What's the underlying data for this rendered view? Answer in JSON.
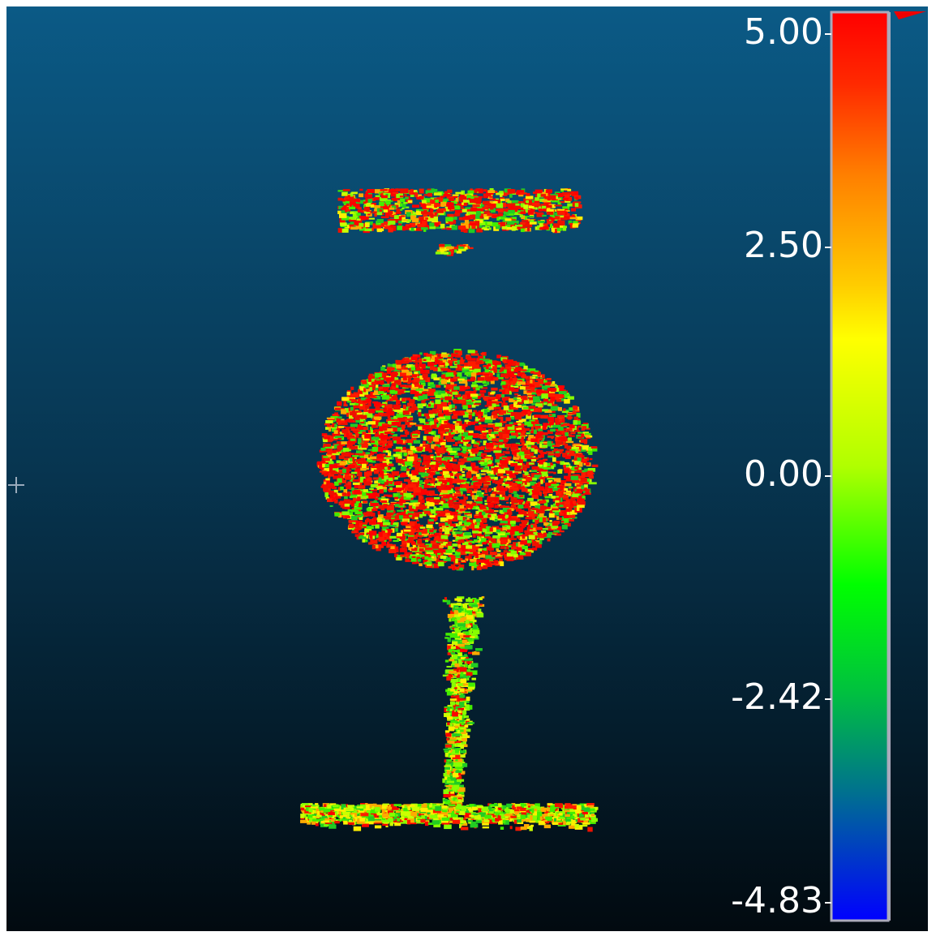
{
  "colorbar": {
    "ticks": [
      "5.00",
      "2.50",
      "0.00",
      "-2.42",
      "-4.83"
    ]
  }
}
